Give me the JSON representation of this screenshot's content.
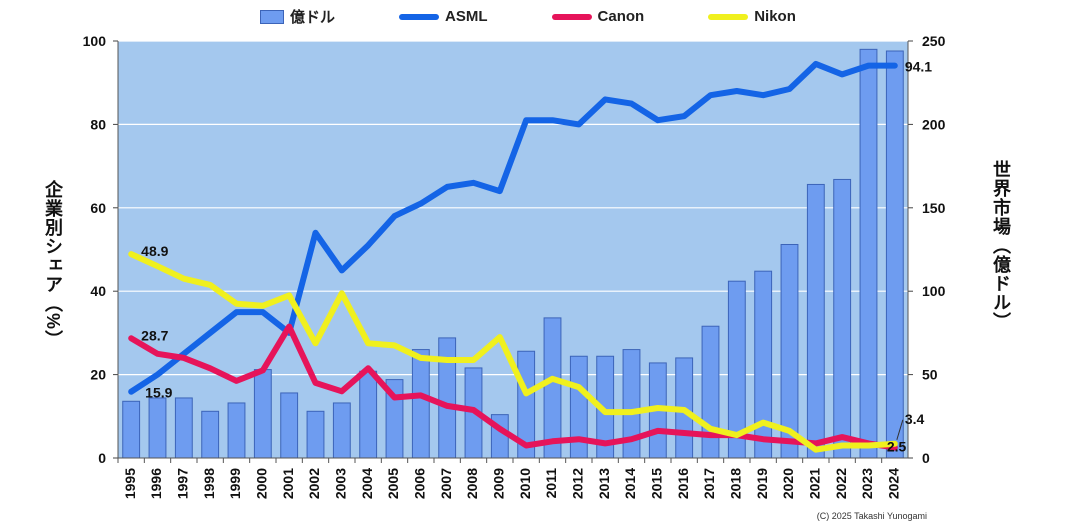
{
  "chart_data": {
    "type": "bar+line",
    "categories": [
      "1995",
      "1996",
      "1997",
      "1998",
      "1999",
      "2000",
      "2001",
      "2002",
      "2003",
      "2004",
      "2005",
      "2006",
      "2007",
      "2008",
      "2009",
      "2010",
      "2011",
      "2012",
      "2013",
      "2014",
      "2015",
      "2016",
      "2017",
      "2018",
      "2019",
      "2020",
      "2021",
      "2022",
      "2023",
      "2024"
    ],
    "bar_series": {
      "name": "億ドル",
      "axis": "right",
      "color": "#6e9cf0",
      "values": [
        34,
        36,
        36,
        28,
        33,
        53,
        39,
        28,
        33,
        52,
        47,
        65,
        72,
        54,
        26,
        64,
        84,
        61,
        61,
        65,
        57,
        60,
        79,
        106,
        112,
        128,
        164,
        167,
        245,
        244
      ]
    },
    "line_series": [
      {
        "name": "ASML",
        "axis": "left",
        "color": "#1464e6",
        "values": [
          15.9,
          20,
          25,
          30,
          35,
          35,
          30,
          54,
          45,
          51,
          58,
          61,
          65,
          66,
          64,
          81,
          81,
          80,
          86,
          85,
          81,
          82,
          87,
          88,
          87,
          88.5,
          94.5,
          92,
          94.1,
          94.1
        ]
      },
      {
        "name": "Canon",
        "axis": "left",
        "color": "#e6145a",
        "values": [
          28.7,
          25,
          24,
          21.5,
          18.5,
          21,
          31.5,
          18,
          16,
          21.5,
          14.5,
          15,
          12.5,
          11.5,
          7,
          3,
          4,
          4.5,
          3.5,
          4.5,
          6.5,
          6,
          5.5,
          5.5,
          4.5,
          4,
          3.5,
          5,
          3.5,
          2.5
        ]
      },
      {
        "name": "Nikon",
        "axis": "left",
        "color": "#f0f01e",
        "values": [
          48.9,
          46,
          43,
          41.5,
          37,
          36.5,
          39,
          27.5,
          39.5,
          27.5,
          27,
          24,
          23.5,
          23.5,
          29,
          15.5,
          19,
          17,
          11,
          11,
          12,
          11.5,
          7,
          5.5,
          8.5,
          6.5,
          2,
          3,
          3,
          3.4
        ]
      }
    ],
    "left_axis": {
      "label": "企業別シェア（%）",
      "min": 0,
      "max": 100,
      "ticks": [
        "0",
        "20",
        "40",
        "60",
        "80",
        "100"
      ]
    },
    "right_axis": {
      "label": "世界市場（億ドル）",
      "min": 0,
      "max": 250,
      "ticks": [
        "0",
        "50",
        "100",
        "150",
        "200",
        "250"
      ]
    },
    "data_labels": [
      {
        "series": "Nikon",
        "index": 0,
        "text": "48.9"
      },
      {
        "series": "Canon",
        "index": 0,
        "text": "28.7"
      },
      {
        "series": "ASML",
        "index": 0,
        "text": "15.9"
      },
      {
        "series": "ASML",
        "index": 29,
        "text": "94.1"
      },
      {
        "series": "Nikon",
        "index": 29,
        "text": "3.4"
      },
      {
        "series": "Canon",
        "index": 29,
        "text": "2.5"
      }
    ],
    "legend_position": "top",
    "grid": true,
    "plot_background": "#a4c8ee"
  },
  "legend": {
    "bar": "億ドル",
    "asml": "ASML",
    "canon": "Canon",
    "nikon": "Nikon",
    "asml_color": "#1464e6",
    "canon_color": "#e6145a",
    "nikon_color": "#f0f01e"
  },
  "labels": {
    "left_axis": "企業別シェア（%）",
    "right_axis": "世界市場（億ドル）",
    "copyright": "(C) 2025 Takashi Yunogami"
  }
}
